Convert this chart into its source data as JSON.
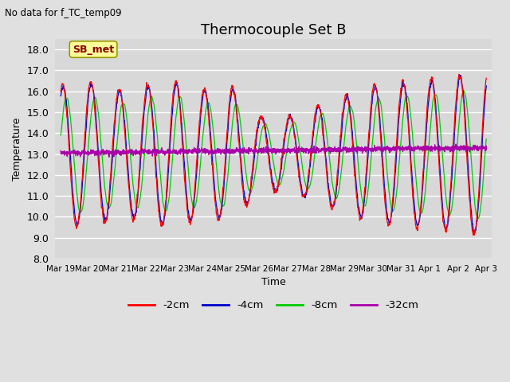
{
  "title": "Thermocouple Set B",
  "title_fontsize": 13,
  "subtitle": "No data for f_TC_temp09",
  "ylabel": "Temperature",
  "xlabel": "Time",
  "ylim": [
    8.0,
    18.5
  ],
  "yticks": [
    8.0,
    9.0,
    10.0,
    11.0,
    12.0,
    13.0,
    14.0,
    15.0,
    16.0,
    17.0,
    18.0
  ],
  "bg_color": "#e0e0e0",
  "plot_bg_color": "#d8d8d8",
  "legend_label": "SB_met",
  "legend_text_color": "#8b0000",
  "legend_bg": "#ffff99",
  "legend_edge": "#999900",
  "line_colors": {
    "-2cm": "#ff0000",
    "-4cm": "#0000cc",
    "-8cm": "#00cc00",
    "-32cm": "#aa00aa"
  },
  "n_points": 3000,
  "xtick_labels": [
    "Mar 19",
    "Mar 20",
    "Mar 21",
    "Mar 22",
    "Mar 23",
    "Mar 24",
    "Mar 25",
    "Mar 26",
    "Mar 27",
    "Mar 28",
    "Mar 29",
    "Mar 30",
    "Mar 31",
    "Apr 1",
    "Apr 2",
    "Apr 3"
  ],
  "xtick_positions": [
    0,
    1,
    2,
    3,
    4,
    5,
    6,
    7,
    8,
    9,
    10,
    11,
    12,
    13,
    14,
    15
  ]
}
